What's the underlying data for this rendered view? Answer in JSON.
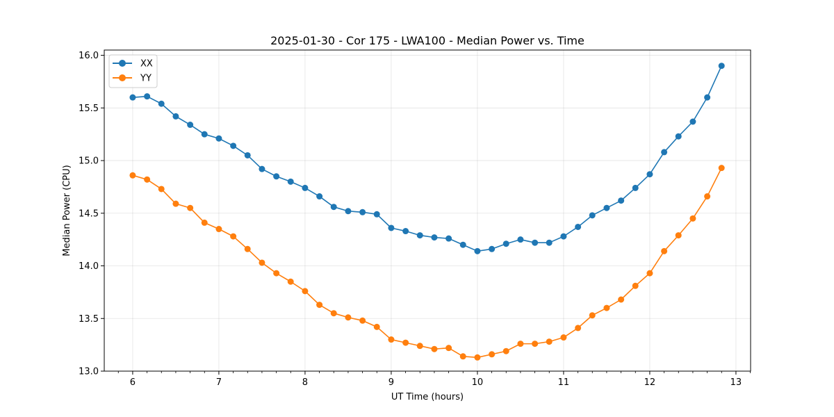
{
  "chart_data": {
    "type": "line",
    "title": "2025-01-30 - Cor 175 - LWA100 - Median Power vs. Time",
    "xlabel": "UT Time (hours)",
    "ylabel": "Median Power (CPU)",
    "xlim": [
      5.67,
      13.17
    ],
    "ylim": [
      13.0,
      16.05
    ],
    "xticks": [
      6,
      7,
      8,
      9,
      10,
      11,
      12,
      13
    ],
    "xtick_labels": [
      "6",
      "7",
      "8",
      "9",
      "10",
      "11",
      "12",
      "13"
    ],
    "yticks": [
      13.0,
      13.5,
      14.0,
      14.5,
      15.0,
      15.5,
      16.0
    ],
    "ytick_labels": [
      "13.0",
      "13.5",
      "14.0",
      "14.5",
      "15.0",
      "15.5",
      "16.0"
    ],
    "grid": true,
    "legend_position": "top-left",
    "x": [
      6.0,
      6.167,
      6.333,
      6.5,
      6.667,
      6.833,
      7.0,
      7.167,
      7.333,
      7.5,
      7.667,
      7.833,
      8.0,
      8.167,
      8.333,
      8.5,
      8.667,
      8.833,
      9.0,
      9.167,
      9.333,
      9.5,
      9.667,
      9.833,
      10.0,
      10.167,
      10.333,
      10.5,
      10.667,
      10.833,
      11.0,
      11.167,
      11.333,
      11.5,
      11.667,
      11.833,
      12.0,
      12.167,
      12.333,
      12.5,
      12.667,
      12.833
    ],
    "series": [
      {
        "name": "XX",
        "color": "#1f77b4",
        "values": [
          15.6,
          15.61,
          15.54,
          15.42,
          15.34,
          15.25,
          15.21,
          15.14,
          15.05,
          14.92,
          14.85,
          14.8,
          14.74,
          14.66,
          14.56,
          14.52,
          14.51,
          14.49,
          14.36,
          14.33,
          14.29,
          14.27,
          14.26,
          14.2,
          14.14,
          14.16,
          14.21,
          14.25,
          14.22,
          14.22,
          14.28,
          14.37,
          14.48,
          14.55,
          14.62,
          14.74,
          14.87,
          15.08,
          15.23,
          15.37,
          15.6,
          15.9
        ]
      },
      {
        "name": "YY",
        "color": "#ff7f0e",
        "values": [
          14.86,
          14.82,
          14.73,
          14.59,
          14.55,
          14.41,
          14.35,
          14.28,
          14.16,
          14.03,
          13.93,
          13.85,
          13.76,
          13.63,
          13.55,
          13.51,
          13.48,
          13.42,
          13.3,
          13.27,
          13.24,
          13.21,
          13.22,
          13.14,
          13.13,
          13.16,
          13.19,
          13.26,
          13.26,
          13.28,
          13.32,
          13.41,
          13.53,
          13.6,
          13.68,
          13.81,
          13.93,
          14.14,
          14.29,
          14.45,
          14.66,
          14.93
        ]
      }
    ]
  }
}
